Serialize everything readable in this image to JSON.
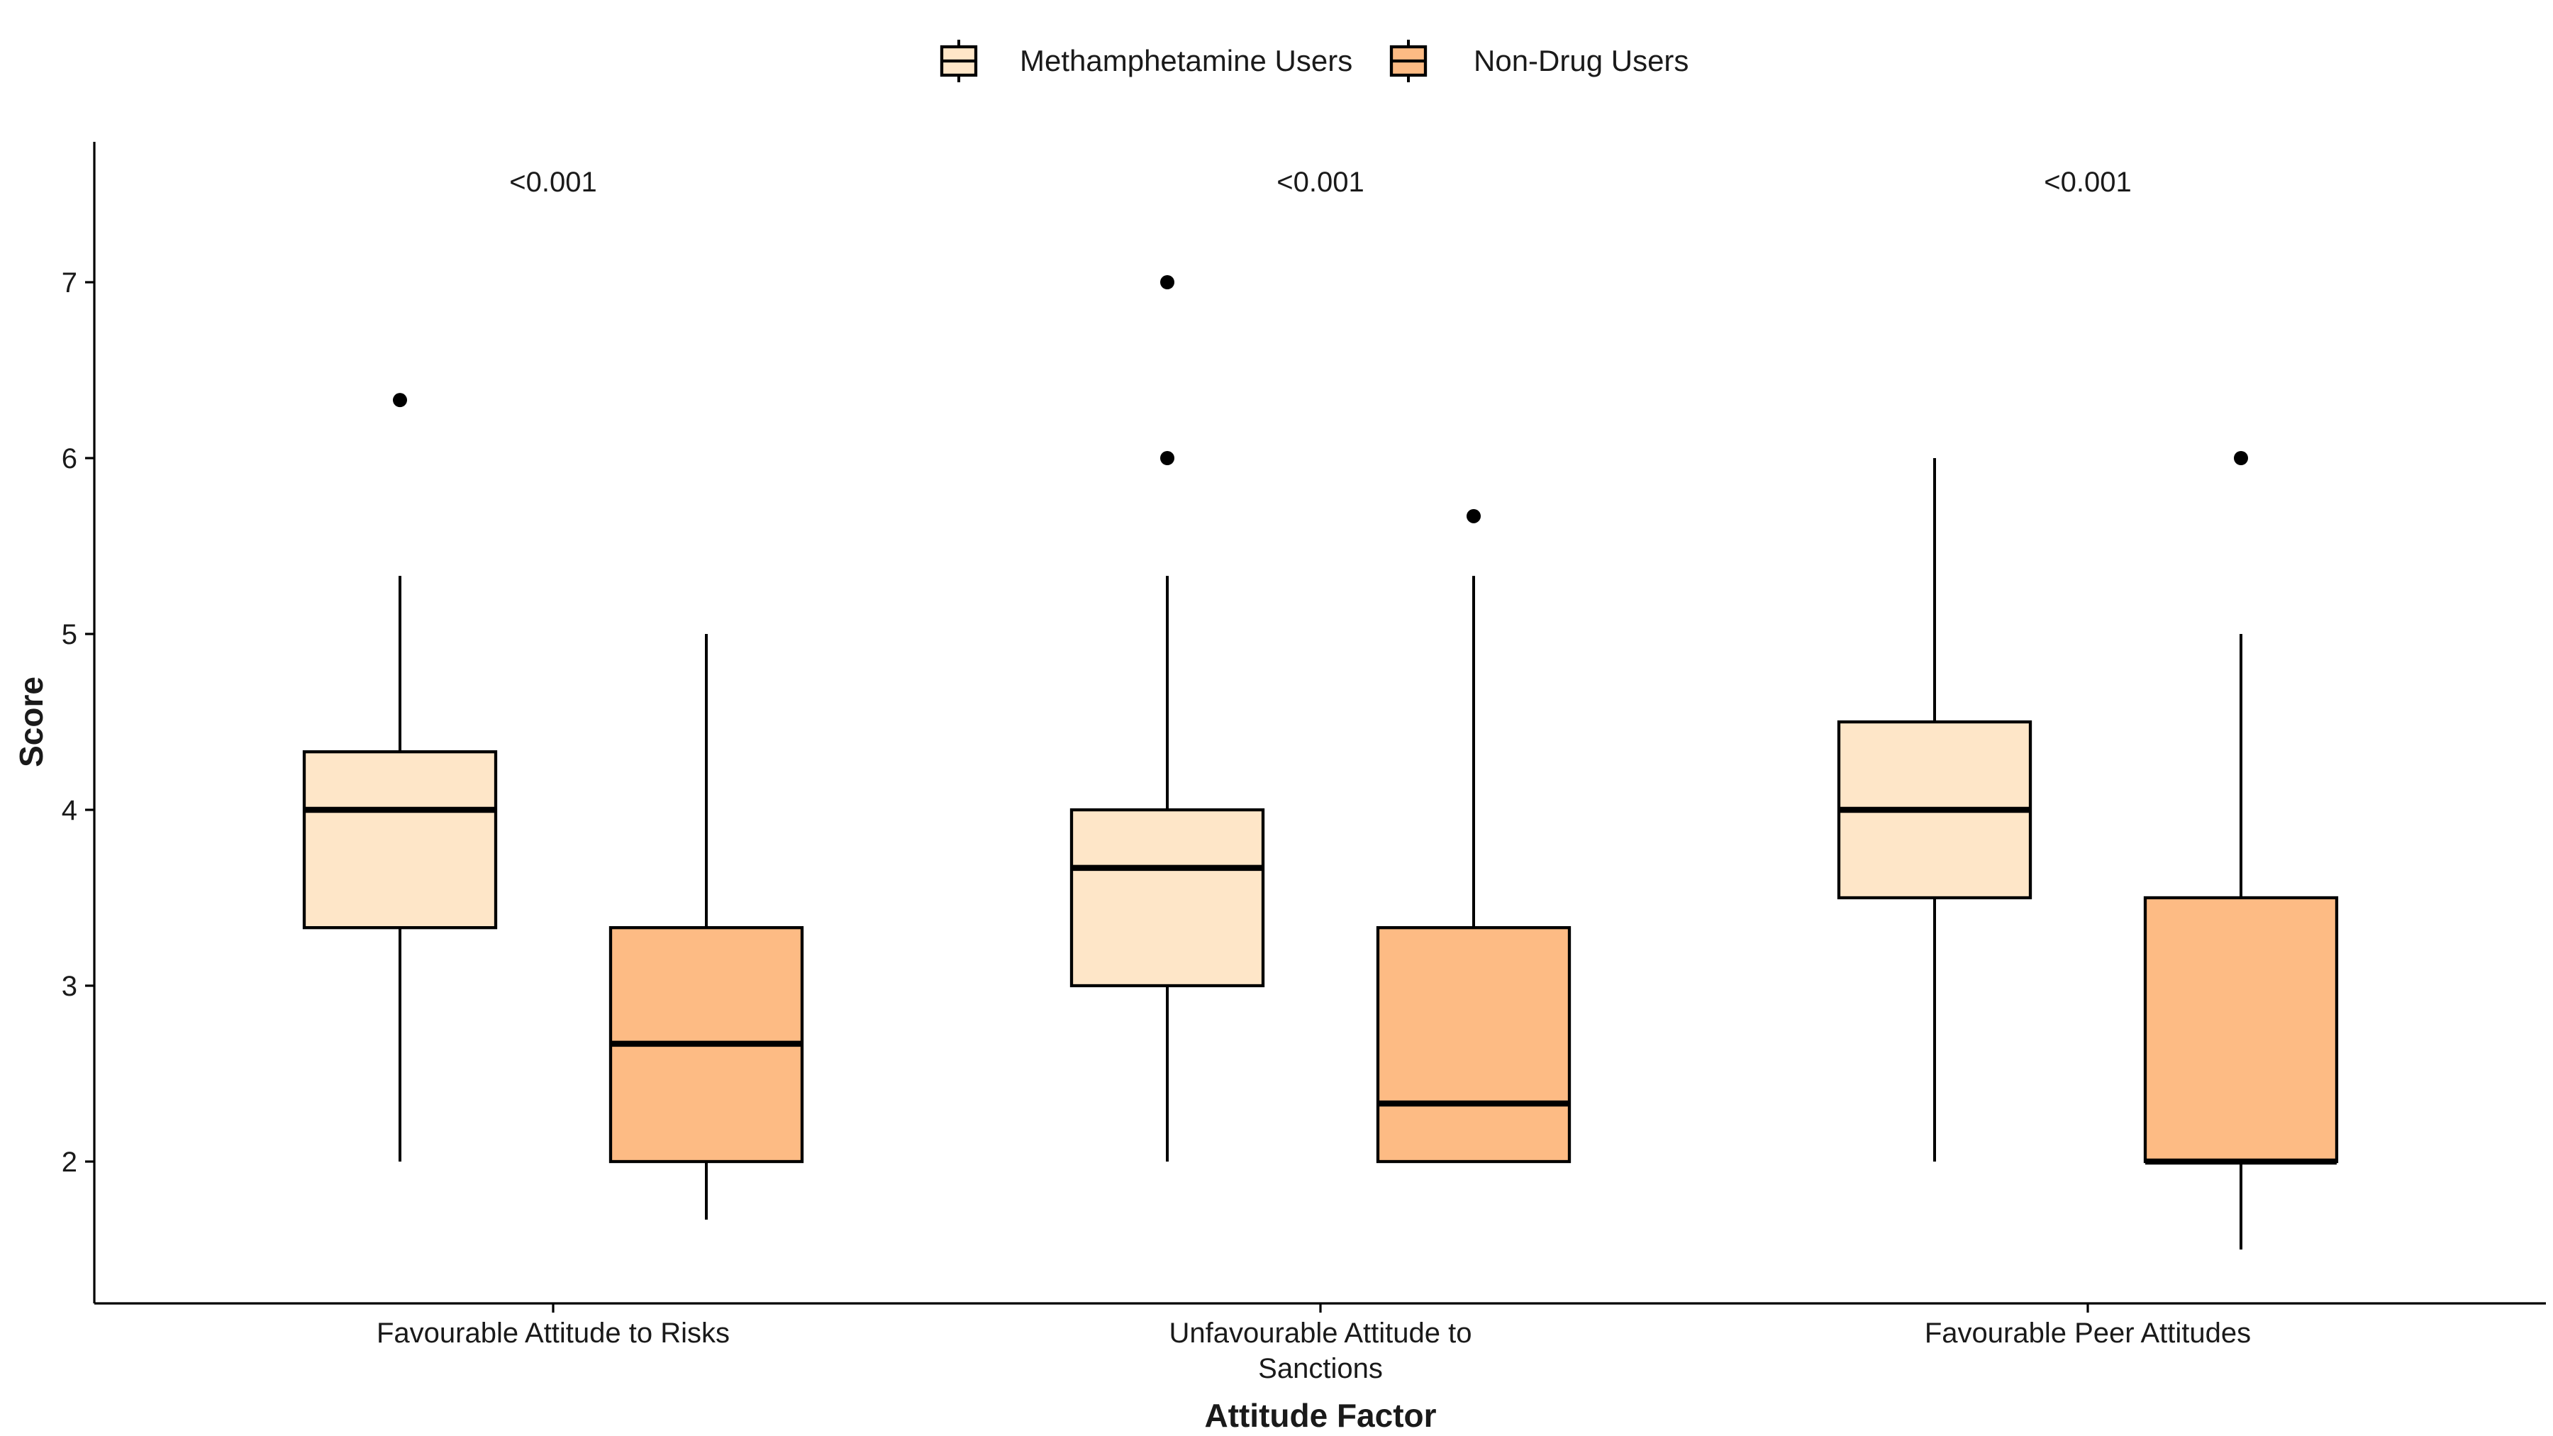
{
  "chart_data": {
    "type": "box",
    "xlabel": "Attitude Factor",
    "ylabel": "Score",
    "ylim": [
      1.2,
      7.8
    ],
    "yticks": [
      2,
      3,
      4,
      5,
      6,
      7
    ],
    "grid": false,
    "legend_position": "top",
    "categories": [
      [
        "Favourable Attitude to Risks"
      ],
      [
        "Unfavourable Attitude to",
        "Sanctions"
      ],
      [
        "Favourable Peer Attitudes"
      ]
    ],
    "p_values": [
      "<0.001",
      "<0.001",
      "<0.001"
    ],
    "series": [
      {
        "name": "Methamphetamine Users",
        "color": "#FEE6C8",
        "boxes": [
          {
            "low": 2,
            "q1": 3.33,
            "median": 4,
            "q3": 4.33,
            "high": 5.33,
            "outliers": [
              6.33
            ]
          },
          {
            "low": 2,
            "q1": 3,
            "median": 3.67,
            "q3": 4,
            "high": 5.33,
            "outliers": [
              6,
              7
            ]
          },
          {
            "low": 2,
            "q1": 3.5,
            "median": 4,
            "q3": 4.5,
            "high": 6,
            "outliers": []
          }
        ]
      },
      {
        "name": "Non-Drug Users",
        "color": "#FDBB84",
        "boxes": [
          {
            "low": 1.67,
            "q1": 2,
            "median": 2.67,
            "q3": 3.33,
            "high": 5,
            "outliers": []
          },
          {
            "low": 2,
            "q1": 2,
            "median": 2.33,
            "q3": 3.33,
            "high": 5.33,
            "outliers": [
              5.67
            ]
          },
          {
            "low": 1.5,
            "q1": 2,
            "median": 2,
            "q3": 3.5,
            "high": 5,
            "outliers": [
              6
            ]
          }
        ]
      }
    ]
  }
}
